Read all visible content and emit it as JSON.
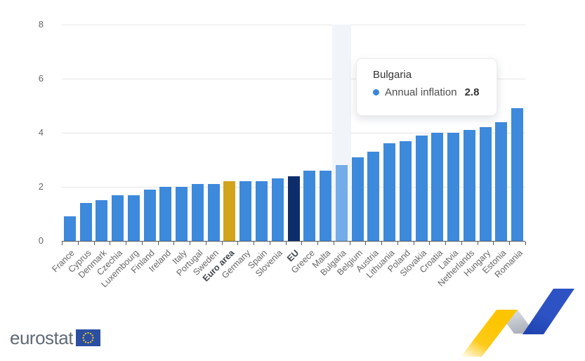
{
  "chart_data": {
    "type": "bar",
    "title": "",
    "xlabel": "",
    "ylabel": "",
    "ylim": [
      0,
      8
    ],
    "yticks": [
      0,
      2,
      4,
      6,
      8
    ],
    "grid": true,
    "legend_position": "none",
    "series_name": "Annual inflation",
    "categories": [
      "France",
      "Cyprus",
      "Denmark",
      "Czechia",
      "Luxembourg",
      "Finland",
      "Ireland",
      "Italy",
      "Portugal",
      "Sweden",
      "Euro area",
      "Germany",
      "Spain",
      "Slovenia",
      "EU",
      "Greece",
      "Malta",
      "Bulgaria",
      "Belgium",
      "Austria",
      "Lithuania",
      "Poland",
      "Slovakia",
      "Croatia",
      "Latvia",
      "Netherlands",
      "Hungary",
      "Estonia",
      "Romania"
    ],
    "values": [
      0.9,
      1.4,
      1.5,
      1.7,
      1.7,
      1.9,
      2.0,
      2.0,
      2.1,
      2.1,
      2.2,
      2.2,
      2.2,
      2.3,
      2.4,
      2.6,
      2.6,
      2.8,
      3.1,
      3.3,
      3.6,
      3.7,
      3.9,
      4.0,
      4.0,
      4.1,
      4.2,
      4.4,
      4.9
    ],
    "bold_categories": [
      "Euro area",
      "EU"
    ],
    "hovered_category": "Bulgaria",
    "colors": {
      "default_bar": "#3D89DC",
      "euro_area_bar": "#D2A31C",
      "eu_bar": "#0E2D6B",
      "hovered_bar": "#74ACE9",
      "hover_band": "#F1F5FA",
      "gridline": "#E6E6E6",
      "axis_line": "#55595E",
      "axis_text": "#666666"
    }
  },
  "tooltip": {
    "title": "Bulgaria",
    "series_label": "Annual inflation",
    "value": "2.8",
    "marker_color": "#3A86DC"
  },
  "footer": {
    "logo_text": "eurostat",
    "flag_color": "#2B4EA2",
    "star_color": "#FFD617"
  },
  "deco_colors": {
    "yellow": "#FDC500",
    "grey": "#C3C7CE",
    "blue": "#2C52C4"
  }
}
